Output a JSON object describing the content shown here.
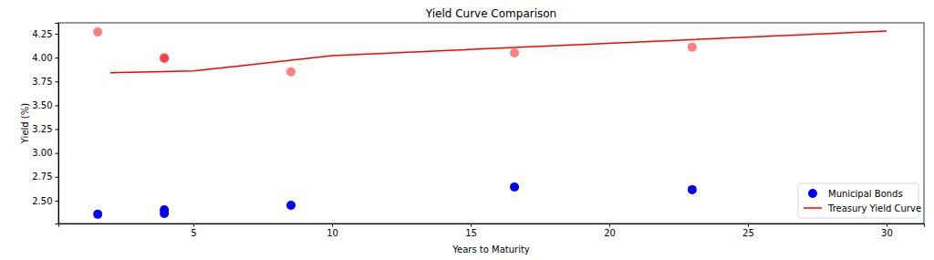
{
  "chart_data": {
    "type": "scatter",
    "title": "Yield Curve Comparison",
    "x_label": "Years to Maturity",
    "y_label": "Yield (%)",
    "xlim": [
      0.13,
      31.35
    ],
    "ylim": [
      2.26,
      4.365
    ],
    "xticks": [
      5,
      10,
      15,
      20,
      25,
      30
    ],
    "yticks": [
      {
        "value": 2.5,
        "label": "2.50"
      },
      {
        "value": 2.75,
        "label": "2.75"
      },
      {
        "value": 3.0,
        "label": "3.00"
      },
      {
        "value": 3.25,
        "label": "3.25"
      },
      {
        "value": 3.5,
        "label": "3.50"
      },
      {
        "value": 3.75,
        "label": "3.75"
      },
      {
        "value": 4.0,
        "label": "4.00"
      },
      {
        "value": 4.25,
        "label": "4.25"
      }
    ],
    "grid": false,
    "legend": "lower right",
    "series": [
      {
        "name": "Municipal Bonds",
        "type": "scatter",
        "marker": "circle",
        "color": "#0000ff",
        "x": [
          1.55,
          3.95,
          3.95,
          8.52,
          16.58,
          22.99
        ],
        "values": [
          2.357,
          2.404,
          2.366,
          2.452,
          2.643,
          2.615
        ]
      },
      {
        "name": "Treasury Yield Curve",
        "type": "line",
        "line_style": "solid",
        "color": "#ff0000",
        "x": [
          2,
          5,
          10,
          30
        ],
        "values": [
          3.84,
          3.86,
          4.02,
          4.28
        ]
      },
      {
        "type": "scatter",
        "marker": "circle",
        "color": "#ff0000",
        "x": [
          1.55,
          3.95,
          3.95,
          8.52,
          16.58,
          22.99
        ],
        "values": [
          4.27,
          3.99,
          4.0,
          3.85,
          4.05,
          4.11
        ]
      }
    ]
  }
}
